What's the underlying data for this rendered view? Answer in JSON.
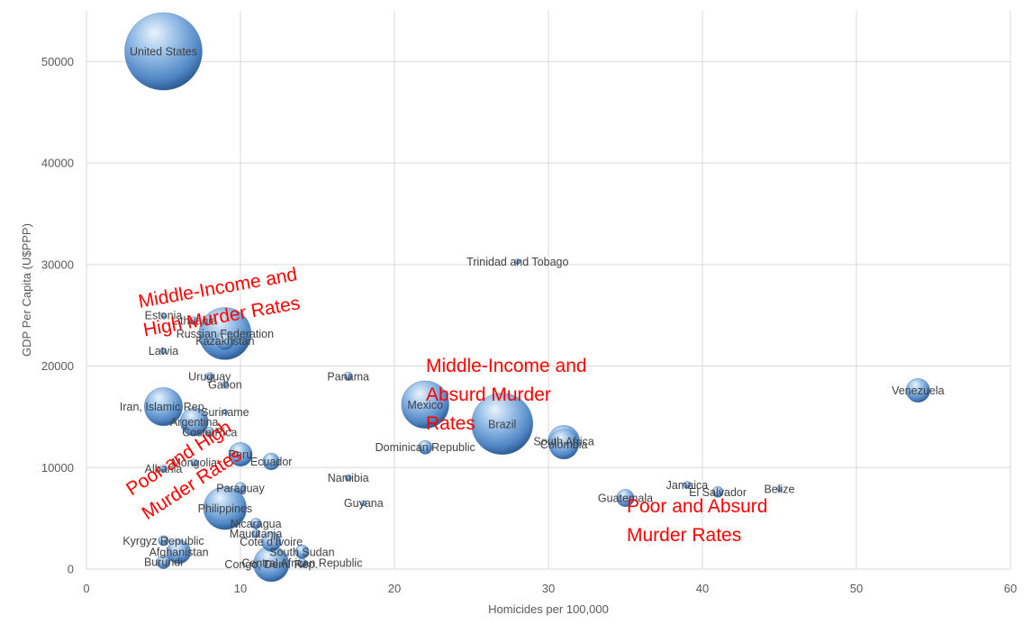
{
  "chart_data": {
    "type": "bubble",
    "title": "",
    "xlabel": "Homicides per 100,000",
    "ylabel": "GDP Per Capita (U$PPP)",
    "xlim": [
      0,
      60
    ],
    "ylim": [
      0,
      55000
    ],
    "xticks": [
      "0",
      "10",
      "20",
      "30",
      "40",
      "50",
      "60"
    ],
    "yticks": [
      "0",
      "10000",
      "20000",
      "30000",
      "40000",
      "50000"
    ],
    "grid": true,
    "legend": "none",
    "points": [
      {
        "label": "United States",
        "x": 5,
        "y": 51000,
        "size": 320
      },
      {
        "label": "Venezuela",
        "x": 54,
        "y": 17600,
        "size": 30
      },
      {
        "label": "Trinidad and Tobago",
        "x": 28,
        "y": 30300,
        "size": 1.3
      },
      {
        "label": "Brazil",
        "x": 27,
        "y": 14300,
        "size": 200
      },
      {
        "label": "Mexico",
        "x": 22,
        "y": 16200,
        "size": 120
      },
      {
        "label": "South Africa",
        "x": 31,
        "y": 12600,
        "size": 53
      },
      {
        "label": "Colombia",
        "x": 31,
        "y": 12300,
        "size": 47
      },
      {
        "label": "Dominican Republic",
        "x": 22,
        "y": 12000,
        "size": 10
      },
      {
        "label": "Panama",
        "x": 17,
        "y": 19000,
        "size": 3.9
      },
      {
        "label": "Namibia",
        "x": 17,
        "y": 9000,
        "size": 2.3
      },
      {
        "label": "Guyana",
        "x": 18,
        "y": 6500,
        "size": 0.8
      },
      {
        "label": "Guatemala",
        "x": 35,
        "y": 7000,
        "size": 16
      },
      {
        "label": "Jamaica",
        "x": 39,
        "y": 8300,
        "size": 2.8
      },
      {
        "label": "El Salvador",
        "x": 41,
        "y": 7600,
        "size": 6.3
      },
      {
        "label": "Belize",
        "x": 45,
        "y": 7900,
        "size": 0.4
      },
      {
        "label": "Estonia",
        "x": 5,
        "y": 25000,
        "size": 1.3
      },
      {
        "label": "Lithuania",
        "x": 7,
        "y": 24500,
        "size": 2.8
      },
      {
        "label": "Russian Federation",
        "x": 9,
        "y": 23200,
        "size": 145
      },
      {
        "label": "Kazakhstan",
        "x": 9,
        "y": 22500,
        "size": 17
      },
      {
        "label": "Latvia",
        "x": 5,
        "y": 21500,
        "size": 2
      },
      {
        "label": "Uruguay",
        "x": 8,
        "y": 19000,
        "size": 3.4
      },
      {
        "label": "Gabon",
        "x": 9,
        "y": 18200,
        "size": 1.7
      },
      {
        "label": "Iran, Islamic Rep.",
        "x": 5,
        "y": 16000,
        "size": 78
      },
      {
        "label": "Suriname",
        "x": 9,
        "y": 15500,
        "size": 0.5
      },
      {
        "label": "Argentina",
        "x": 7,
        "y": 14500,
        "size": 42
      },
      {
        "label": "Costa Rica",
        "x": 8,
        "y": 13500,
        "size": 4.8
      },
      {
        "label": "Peru",
        "x": 10,
        "y": 11300,
        "size": 30
      },
      {
        "label": "Ecuador",
        "x": 12,
        "y": 10600,
        "size": 15
      },
      {
        "label": "Mongolia",
        "x": 7,
        "y": 10500,
        "size": 2.8
      },
      {
        "label": "Albania",
        "x": 5,
        "y": 9900,
        "size": 2.9
      },
      {
        "label": "Paraguay",
        "x": 10,
        "y": 8000,
        "size": 6.5
      },
      {
        "label": "Philippines",
        "x": 9,
        "y": 6000,
        "size": 98
      },
      {
        "label": "Nicaragua",
        "x": 11,
        "y": 4500,
        "size": 6
      },
      {
        "label": "Mauritania",
        "x": 11,
        "y": 3500,
        "size": 3.7
      },
      {
        "label": "Kyrgyz Republic",
        "x": 5,
        "y": 2800,
        "size": 5.6
      },
      {
        "label": "Cote d'Ivoire",
        "x": 12,
        "y": 2700,
        "size": 20
      },
      {
        "label": "South Sudan",
        "x": 14,
        "y": 1700,
        "size": 10
      },
      {
        "label": "Afghanistan",
        "x": 6,
        "y": 1700,
        "size": 30
      },
      {
        "label": "Burundi",
        "x": 5,
        "y": 700,
        "size": 9.8
      },
      {
        "label": "Central African Republic",
        "x": 14,
        "y": 600,
        "size": 4.4
      },
      {
        "label": "Congo, Dem. Rep.",
        "x": 12,
        "y": 500,
        "size": 67
      }
    ],
    "annotations": [
      {
        "text": "Middle-Income and High Murder Rates",
        "lines": [
          "Middle-Income and",
          "High Murder Rates"
        ]
      },
      {
        "text": "Middle-Income and Absurd Murder Rates",
        "lines": [
          "Middle-Income and",
          "Absurd Murder",
          "Rates"
        ]
      },
      {
        "text": "Poor and High Murder Rates",
        "lines": [
          "Poor and High",
          "Murder Rates"
        ]
      },
      {
        "text": "Poor and Absurd Murder Rates",
        "lines": [
          "Poor and Absurd",
          "Murder Rates"
        ]
      }
    ]
  }
}
